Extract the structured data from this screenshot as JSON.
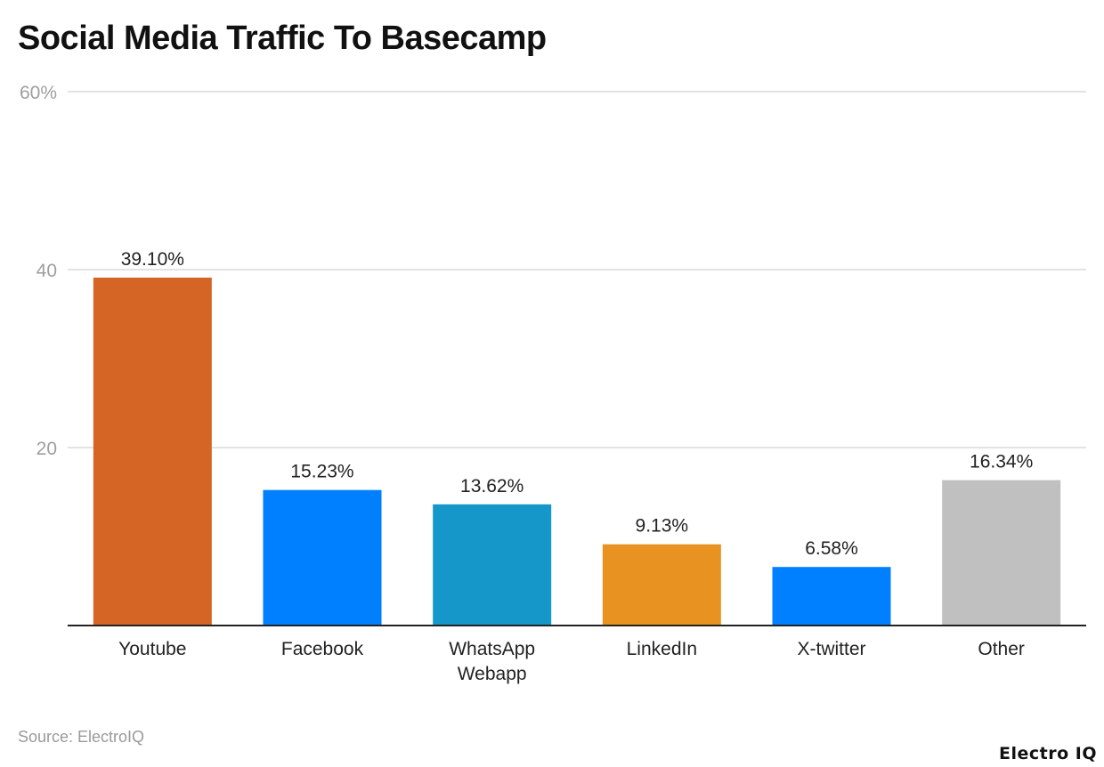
{
  "chart_data": {
    "type": "bar",
    "title": "Social Media Traffic To Basecamp",
    "categories": [
      "Youtube",
      "Facebook",
      "WhatsApp Webapp",
      "LinkedIn",
      "X-twitter",
      "Other"
    ],
    "category_lines": [
      [
        "Youtube"
      ],
      [
        "Facebook"
      ],
      [
        "WhatsApp",
        "Webapp"
      ],
      [
        "LinkedIn"
      ],
      [
        "X-twitter"
      ],
      [
        "Other"
      ]
    ],
    "values": [
      39.1,
      15.23,
      13.62,
      9.13,
      6.58,
      16.34
    ],
    "data_labels": [
      "39.10%",
      "15.23%",
      "13.62%",
      "9.13%",
      "6.58%",
      "16.34%"
    ],
    "colors": [
      "#D56524",
      "#007FFF",
      "#1697C9",
      "#E89321",
      "#007FFF",
      "#BFC0BF"
    ],
    "ylim": [
      0,
      60
    ],
    "yticks": [
      20,
      40,
      60
    ],
    "ytick_labels": [
      "20",
      "40",
      "60%"
    ],
    "grid": true,
    "xlabel": "",
    "ylabel": ""
  },
  "source": "Source: ElectroIQ",
  "logo": "Electro IQ"
}
